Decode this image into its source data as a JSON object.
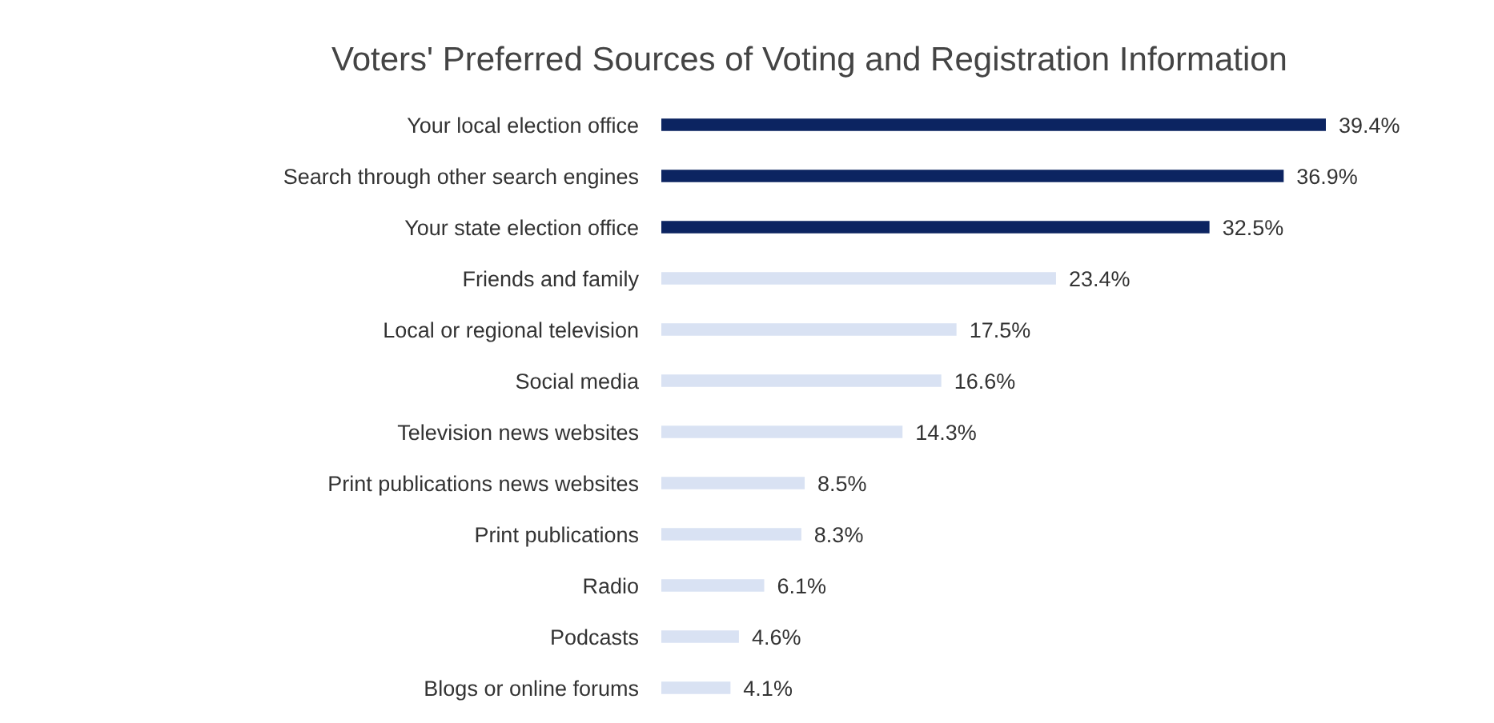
{
  "chart_data": {
    "type": "bar",
    "orientation": "horizontal",
    "title": "Voters' Preferred Sources of Voting and Registration Information",
    "categories": [
      "Your local election office",
      "Search through other search engines",
      "Your state election office",
      "Friends and family",
      "Local or regional television",
      "Social media",
      "Television news websites",
      "Print publications news websites",
      "Print publications",
      "Radio",
      "Podcasts",
      "Blogs or online forums"
    ],
    "values": [
      39.4,
      36.9,
      32.5,
      23.4,
      17.5,
      16.6,
      14.3,
      8.5,
      8.3,
      6.1,
      4.6,
      4.1
    ],
    "value_labels": [
      "39.4%",
      "36.9%",
      "32.5%",
      "23.4%",
      "17.5%",
      "16.6%",
      "14.3%",
      "8.5%",
      "8.3%",
      "6.1%",
      "4.6%",
      "4.1%"
    ],
    "colors": [
      "#0c2461",
      "#0c2461",
      "#0c2461",
      "#d9e2f3",
      "#d9e2f3",
      "#d9e2f3",
      "#d9e2f3",
      "#d9e2f3",
      "#d9e2f3",
      "#d9e2f3",
      "#d9e2f3",
      "#d9e2f3"
    ]
  }
}
